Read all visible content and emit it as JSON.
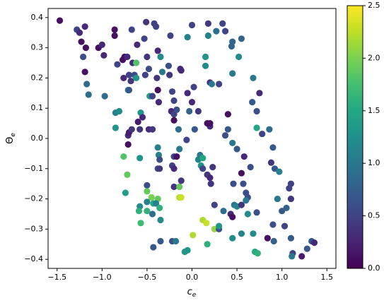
{
  "chart_data": {
    "type": "scatter",
    "colormap": "viridis",
    "xlabel": "c",
    "xlabel_sub": "e",
    "ylabel": "Θ",
    "ylabel_sub": "e",
    "xlim": [
      -1.6,
      1.6
    ],
    "ylim": [
      -0.43,
      0.43
    ],
    "clim": [
      0,
      2.5
    ],
    "xticks": [
      {
        "value": -1.5,
        "label": "−1.5"
      },
      {
        "value": -1,
        "label": "−1.0"
      },
      {
        "value": -0.5,
        "label": "−0.5"
      },
      {
        "value": 0,
        "label": "0.0"
      },
      0.5,
      {
        "value": 1,
        "label": "1.0"
      },
      1.5
    ],
    "yticks": [
      {
        "value": -0.4,
        "label": "−0.4"
      },
      {
        "value": -0.3,
        "label": "−0.3"
      },
      {
        "value": -0.2,
        "label": "−0.2"
      },
      {
        "value": -0.1,
        "label": "−0.1"
      },
      {
        "value": 0,
        "label": "0.0"
      },
      0.1,
      0.2,
      0.3,
      0.4
    ],
    "cticks": [
      {
        "value": 0,
        "label": "0.0"
      },
      0.5,
      {
        "value": 1,
        "label": "1.0"
      },
      1.5,
      {
        "value": 2,
        "label": "2.0"
      },
      2.5
    ],
    "x": [
      -1.47,
      -1.28,
      -1.25,
      -1.19,
      -1.23,
      -1.18,
      -1.21,
      -1.19,
      -1.17,
      -1.15,
      -1.04,
      -1.0,
      -0.98,
      -0.97,
      -0.86,
      -0.86,
      -0.83,
      -0.85,
      -0.81,
      -0.85,
      -0.77,
      -0.75,
      -0.72,
      -0.76,
      -0.7,
      -0.71,
      -0.7,
      -0.68,
      -0.71,
      -0.7,
      -0.67,
      -0.71,
      -0.76,
      -0.72,
      -0.74,
      -0.67,
      -0.66,
      -0.64,
      -0.62,
      -0.62,
      -0.61,
      -0.6,
      -0.58,
      -0.57,
      -0.55,
      -0.53,
      -0.51,
      -0.52,
      -0.5,
      -0.48,
      -0.47,
      -0.44,
      -0.48,
      -0.44,
      -0.42,
      -0.4,
      -0.38,
      -0.39,
      -0.38,
      -0.37,
      -0.35,
      -0.58,
      -0.38,
      -0.37,
      -0.36,
      -0.38,
      -0.36,
      -0.5,
      -0.5,
      -0.45,
      -0.38,
      -0.43,
      -0.4,
      -0.36,
      -0.35,
      -0.5,
      -0.58,
      -0.59,
      -0.5,
      -0.44,
      -0.57,
      -0.43,
      -0.35,
      -0.33,
      -0.26,
      -0.25,
      -0.24,
      -0.22,
      -0.2,
      -0.23,
      -0.2,
      -0.17,
      -0.2,
      -0.2,
      -0.22,
      -0.2,
      -0.17,
      -0.15,
      -0.12,
      -0.13,
      -0.14,
      -0.2,
      -0.14,
      -0.14,
      -0.12,
      -0.12,
      -0.22,
      -0.18,
      -0.05,
      -0.05,
      0.0,
      0.02,
      0.0,
      -0.03,
      -0.06,
      0.03,
      0.07,
      0.07,
      0.09,
      0.1,
      0.12,
      0.12,
      0.17,
      0.2,
      0.15,
      0.15,
      0.18,
      0.18,
      0.2,
      0.22,
      0.2,
      0.17,
      0.2,
      0.23,
      0.21,
      0.12,
      0.16,
      0.25,
      0.01,
      -0.08,
      -0.05,
      0.17,
      0.25,
      0.3,
      0.3,
      0.27,
      0.34,
      0.37,
      0.3,
      0.37,
      0.4,
      0.35,
      0.4,
      0.44,
      0.45,
      0.45,
      0.45,
      0.5,
      0.46,
      0.47,
      0.43,
      0.45,
      0.45,
      0.55,
      0.5,
      0.55,
      0.52,
      0.55,
      0.58,
      0.57,
      0.6,
      0.62,
      0.6,
      0.62,
      0.55,
      0.65,
      0.68,
      0.67,
      0.68,
      0.7,
      0.73,
      0.72,
      0.72,
      0.72,
      0.75,
      0.78,
      0.84,
      0.86,
      0.88,
      0.9,
      0.91,
      0.9,
      0.92,
      0.95,
      0.97,
      1.0,
      1.03,
      1.05,
      1.08,
      1.1,
      1.1,
      1.1,
      1.12,
      1.11,
      1.22,
      1.28,
      1.33,
      1.36
    ],
    "y": [
      0.39,
      0.36,
      0.35,
      0.37,
      0.32,
      0.3,
      0.27,
      0.22,
      0.18,
      0.145,
      0.3,
      0.31,
      0.275,
      0.14,
      0.36,
      0.34,
      0.245,
      0.085,
      0.09,
      0.035,
      0.26,
      0.27,
      0.27,
      0.2,
      0.21,
      0.16,
      0.16,
      0.19,
      0.01,
      0.02,
      0.03,
      -0.02,
      -0.06,
      -0.12,
      -0.18,
      0.36,
      0.25,
      0.21,
      0.2,
      0.25,
      0.31,
      0.055,
      0.03,
      0.085,
      0.07,
      0.33,
      0.385,
      0.21,
      0.27,
      0.23,
      0.14,
      0.14,
      0.03,
      0.03,
      0.38,
      0.37,
      0.29,
      0.2,
      0.16,
      0.12,
      0.27,
      -0.065,
      -0.03,
      -0.055,
      -0.07,
      -0.1,
      -0.1,
      -0.155,
      -0.175,
      -0.195,
      -0.2,
      -0.215,
      -0.215,
      -0.23,
      -0.27,
      -0.21,
      -0.225,
      -0.24,
      -0.24,
      -0.25,
      -0.28,
      -0.36,
      -0.34,
      0.22,
      0.24,
      0.21,
      0.34,
      0.155,
      0.125,
      0.09,
      0.08,
      0.095,
      0.06,
      -0.06,
      -0.09,
      -0.1,
      -0.06,
      0.03,
      0.225,
      0.23,
      -0.035,
      -0.16,
      -0.16,
      -0.195,
      -0.195,
      -0.14,
      -0.34,
      -0.34,
      0.335,
      0.15,
      0.375,
      0.17,
      0.12,
      0.09,
      -0.005,
      0.03,
      0.09,
      -0.07,
      -0.055,
      -0.09,
      -0.065,
      -0.1,
      -0.12,
      -0.13,
      0.27,
      0.24,
      0.34,
      0.38,
      0.185,
      0.18,
      0.04,
      0.05,
      0.05,
      -0.095,
      -0.15,
      -0.27,
      -0.28,
      -0.3,
      -0.32,
      -0.375,
      -0.37,
      -0.35,
      -0.22,
      -0.3,
      -0.29,
      0.355,
      0.38,
      0.355,
      0.18,
      0.01,
      0.03,
      -0.24,
      0.08,
      0.305,
      0.32,
      0.215,
      -0.015,
      -0.035,
      -0.15,
      -0.22,
      -0.25,
      -0.26,
      -0.33,
      -0.115,
      -0.225,
      -0.22,
      0.27,
      0.33,
      -0.06,
      -0.15,
      -0.18,
      -0.195,
      -0.205,
      -0.25,
      -0.315,
      -0.095,
      0.2,
      0.12,
      -0.315,
      -0.375,
      -0.38,
      0.09,
      0.035,
      -0.245,
      0.15,
      0.015,
      -0.33,
      0.03,
      -0.08,
      -0.285,
      -0.34,
      -0.03,
      -0.1,
      -0.2,
      -0.11,
      -0.24,
      -0.29,
      -0.23,
      -0.165,
      -0.15,
      -0.2,
      -0.33,
      -0.38,
      -0.39,
      -0.39,
      -0.365,
      -0.34,
      -0.345
    ],
    "c": [
      0.1,
      0.5,
      0.3,
      0.3,
      0.1,
      0.1,
      0.6,
      0.1,
      0.9,
      0.9,
      0.1,
      0.3,
      0.3,
      0.9,
      0.1,
      0.1,
      0.5,
      1.1,
      1.2,
      1.3,
      0.1,
      0.1,
      0.3,
      0.3,
      0.5,
      1.0,
      0.7,
      0.4,
      0.3,
      0.2,
      0.4,
      0.1,
      1.8,
      1.9,
      1.4,
      0.5,
      0.3,
      0.6,
      1.3,
      1.8,
      0.3,
      0.2,
      0.4,
      1.3,
      0.3,
      0.5,
      0.4,
      0.5,
      0.4,
      0.6,
      1.4,
      0.5,
      0.3,
      0.4,
      0.5,
      0.5,
      0.3,
      0.4,
      0.1,
      0.3,
      1.2,
      1.3,
      1.1,
      1.1,
      0.6,
      0.6,
      0.4,
      0.6,
      1.9,
      2.0,
      1.9,
      1.5,
      1.1,
      1.6,
      1.2,
      1.1,
      1.2,
      1.6,
      1.6,
      0.9,
      1.7,
      0.7,
      0.7,
      1.0,
      0.6,
      0.4,
      0.5,
      0.5,
      0.5,
      0.3,
      0.5,
      0.6,
      0.1,
      0.5,
      0.5,
      0.3,
      0.1,
      0.9,
      0.3,
      0.3,
      1.0,
      0.4,
      1.9,
      2.2,
      2.3,
      0.4,
      0.6,
      1.0,
      1.1,
      0.3,
      0.5,
      0.5,
      0.3,
      0.8,
      0.5,
      0.7,
      0.4,
      1.1,
      1.0,
      1.3,
      1.5,
      0.5,
      0.4,
      0.3,
      1.3,
      1.2,
      1.1,
      0.4,
      0.4,
      1.0,
      0.3,
      0.1,
      0.1,
      0.4,
      0.4,
      2.2,
      2.3,
      2.1,
      2.2,
      1.3,
      1.3,
      1.6,
      0.5,
      0.6,
      1.3,
      0.9,
      0.5,
      0.5,
      0.5,
      0.6,
      0.7,
      0.9,
      0.1,
      0.8,
      0.8,
      1.0,
      1.0,
      0.7,
      0.6,
      1.0,
      0.3,
      0.1,
      1.2,
      0.1,
      1.1,
      0.4,
      1.2,
      0.8,
      0.3,
      0.6,
      0.6,
      0.6,
      1.0,
      1.2,
      1.1,
      0.6,
      1.0,
      0.7,
      1.2,
      1.5,
      1.6,
      0.6,
      1.5,
      0.6,
      0.3,
      0.5,
      0.1,
      0.9,
      0.4,
      0.6,
      0.8,
      0.7,
      0.7,
      1.0,
      1.1,
      0.7,
      0.5,
      0.8,
      0.5,
      0.5,
      0.4,
      0.7,
      0.5,
      1.0,
      0.2,
      0.7,
      0.7,
      0.3
    ]
  }
}
